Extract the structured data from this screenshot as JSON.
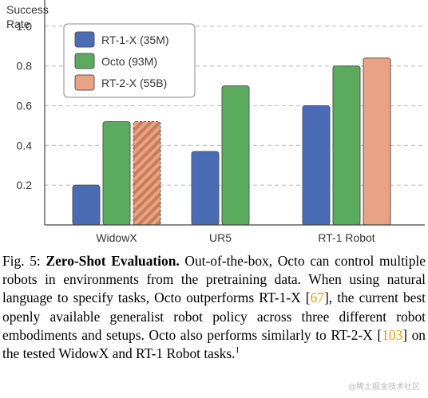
{
  "chart_data": {
    "type": "bar",
    "categories": [
      "WidowX",
      "UR5",
      "RT-1 Robot"
    ],
    "series": [
      {
        "name": "RT-1-X (35M)",
        "values": [
          0.2,
          0.37,
          0.6
        ],
        "color": "#4a6cb5",
        "hatched": false
      },
      {
        "name": "Octo (93M)",
        "values": [
          0.52,
          0.7,
          0.8
        ],
        "color": "#5aab5e",
        "hatched": false
      },
      {
        "name": "RT-2-X (55B)",
        "values": [
          0.52,
          null,
          0.84
        ],
        "color": "#e8a385",
        "hatched_for": [
          "WidowX"
        ]
      }
    ],
    "ylabel_line1": "Success",
    "ylabel_line2": "Rate",
    "yticks": [
      "0.2",
      "0.4",
      "0.6",
      "0.8",
      "1.0"
    ],
    "ylim": [
      0,
      1.1
    ],
    "grid": "dashed-horizontal",
    "legend_position": "top-left"
  },
  "caption": {
    "fig_label": "Fig. 5: ",
    "bold_title": "Zero-Shot Evaluation.",
    "text_1": " Out-of-the-box, Octo can control multiple robots in environments from the pretraining data. When using natural language to specify tasks, Octo outperforms RT-1-X [",
    "cite_1": "67",
    "text_2": "], the current best openly available generalist robot policy across three different robot embodiments and setups. Octo also performs similarly to RT-2-X [",
    "cite_2": "103",
    "text_3": "] on the tested WidowX and RT-1 Robot tasks.",
    "footnote_mark": "1"
  },
  "watermark": "@稀土掘金技术社区"
}
